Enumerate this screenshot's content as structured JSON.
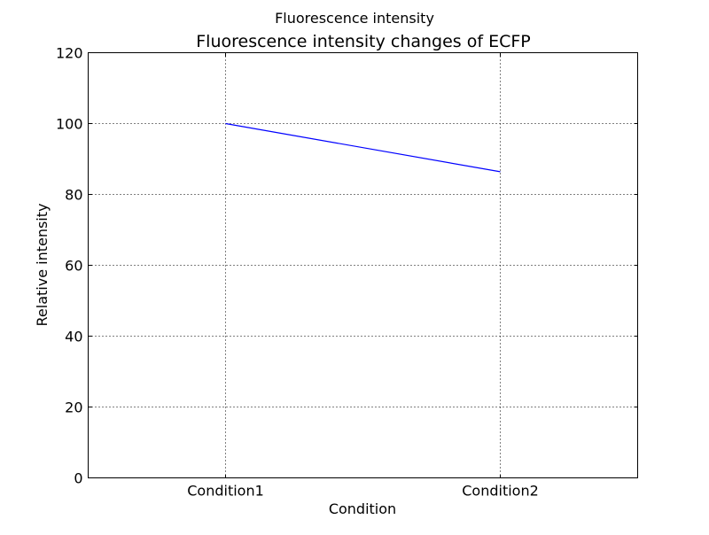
{
  "suptitle": "Fluorescence intensity",
  "chart_data": {
    "type": "line",
    "title": "Fluorescence intensity changes of ECFP",
    "xlabel": "Condition",
    "ylabel": "Relative intensity",
    "categories": [
      "Condition1",
      "Condition2"
    ],
    "series": [
      {
        "values": [
          100,
          86.4
        ],
        "color": "#0000ff"
      }
    ],
    "xlim": [
      0.5,
      2.5
    ],
    "ylim": [
      0,
      120
    ],
    "yticks": [
      0,
      20,
      40,
      60,
      80,
      100,
      120
    ],
    "grid": true
  }
}
